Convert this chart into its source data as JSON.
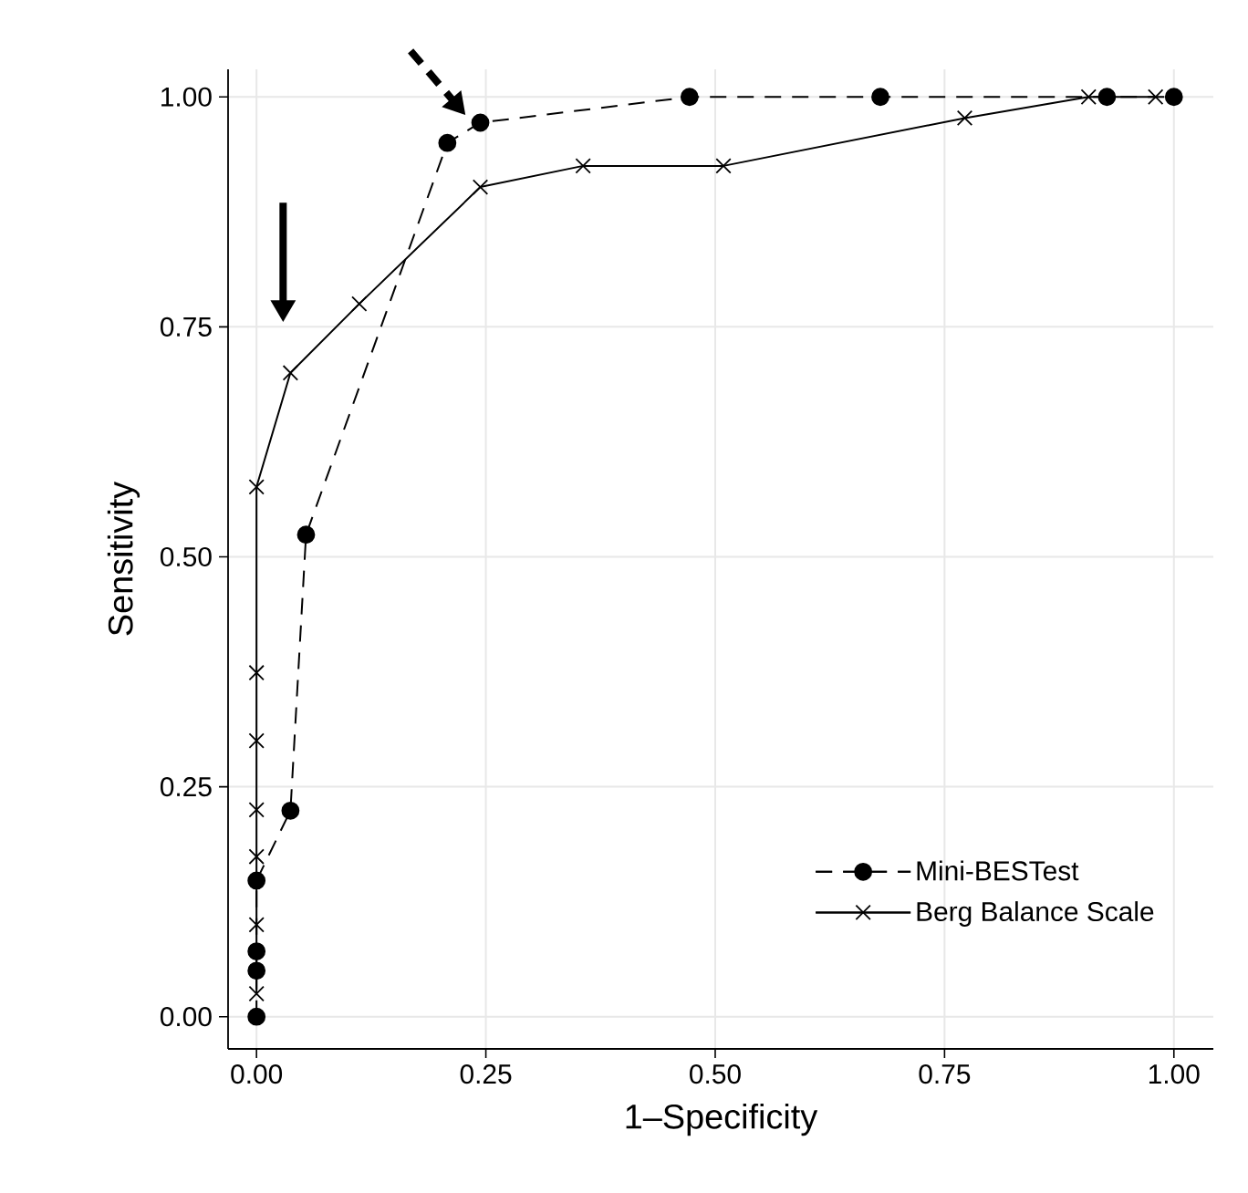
{
  "chart_data": {
    "type": "line",
    "xlabel": "1–Specificity",
    "ylabel": "Sensitivity",
    "xlim": [
      -0.031,
      1.043
    ],
    "ylim": [
      -0.035,
      1.03
    ],
    "xticks": [
      {
        "value": 0,
        "label": "0.00"
      },
      {
        "value": 0.25,
        "label": "0.25"
      },
      {
        "value": 0.5,
        "label": "0.50"
      },
      {
        "value": 0.75,
        "label": "0.75"
      },
      {
        "value": 1,
        "label": "1.00"
      }
    ],
    "yticks": [
      {
        "value": 0,
        "label": "0.00"
      },
      {
        "value": 0.25,
        "label": "0.25"
      },
      {
        "value": 0.5,
        "label": "0.50"
      },
      {
        "value": 0.75,
        "label": "0.75"
      },
      {
        "value": 1,
        "label": "1.00"
      }
    ],
    "grid": true,
    "legend": "bottom right",
    "series": [
      {
        "name": "Mini-BESTest",
        "color": "#000000",
        "marker": "circle",
        "line_style": "dashed",
        "x": [
          0,
          0,
          0,
          0,
          0.037,
          0.054,
          0.208,
          0.244,
          0.472,
          0.68,
          0.927,
          1
        ],
        "values": [
          0,
          0.05,
          0.071,
          0.148,
          0.224,
          0.524,
          0.95,
          0.972,
          1,
          1,
          1,
          1
        ]
      },
      {
        "name": "Berg Balance Scale",
        "color": "#000000",
        "marker": "cross",
        "line_style": "solid",
        "x": [
          0,
          0,
          0,
          0,
          0,
          0,
          0,
          0.037,
          0.112,
          0.244,
          0.356,
          0.509,
          0.772,
          0.907,
          0.98
        ],
        "values": [
          0.025,
          0.1,
          0.174,
          0.225,
          0.3,
          0.374,
          0.576,
          0.7,
          0.775,
          0.902,
          0.925,
          0.925,
          0.977,
          1,
          1
        ]
      }
    ]
  }
}
